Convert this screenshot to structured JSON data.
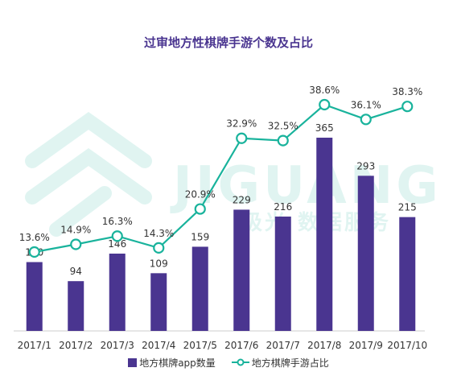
{
  "chart_data": {
    "type": "bar",
    "title": "过审地方性棋牌手游个数及占比",
    "categories": [
      "2017/1",
      "2017/2",
      "2017/3",
      "2017/4",
      "2017/5",
      "2017/6",
      "2017/7",
      "2017/8",
      "2017/9",
      "2017/10"
    ],
    "series": [
      {
        "name": "地方棋牌app数量",
        "type": "bar",
        "color": "#4a3590",
        "values": [
          130,
          94,
          146,
          109,
          159,
          229,
          216,
          365,
          293,
          215
        ],
        "labels": [
          "130",
          "94",
          "146",
          "109",
          "159",
          "229",
          "216",
          "365",
          "293",
          "215"
        ]
      },
      {
        "name": "地方棋牌手游占比",
        "type": "line",
        "color": "#19b39c",
        "values": [
          13.6,
          14.9,
          16.3,
          14.3,
          20.9,
          32.9,
          32.5,
          38.6,
          36.1,
          38.3
        ],
        "labels": [
          "13.6%",
          "14.9%",
          "16.3%",
          "14.3%",
          "20.9%",
          "32.9%",
          "32.5%",
          "38.6%",
          "36.1%",
          "38.3%"
        ]
      }
    ],
    "y_bar_range": [
      0,
      400
    ],
    "y_line_range": [
      0,
      45
    ],
    "grid": false,
    "legend": "bottom"
  },
  "watermark": {
    "main": "JIGUANG",
    "sub": "极光 数据服务"
  }
}
